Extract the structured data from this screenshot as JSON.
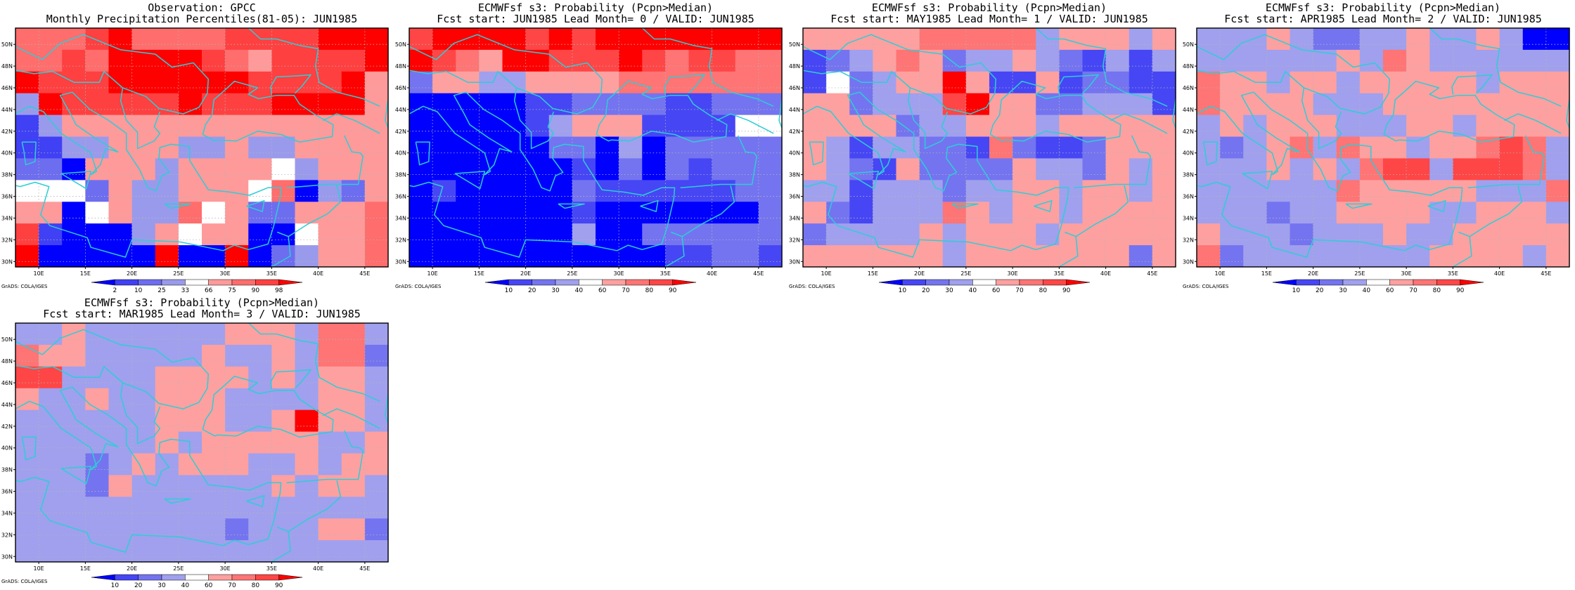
{
  "palette": {
    "percentile": [
      "#0000ff",
      "#4040f5",
      "#6d6df0",
      "#9a9aec",
      "#ffffff",
      "#ff9a9a",
      "#ff6d6d",
      "#ff4040",
      "#ff0000"
    ],
    "probability": [
      "#0000ff",
      "#4646f5",
      "#7474f0",
      "#a0a0ee",
      "#ffffff",
      "#ffa0a0",
      "#ff7474",
      "#ff4646",
      "#ff0000"
    ],
    "coast": "#2ecdd6",
    "grid": "#b5b5b5"
  },
  "credit": "GrADS: COLA/IGES",
  "chart_data": [
    {
      "type": "heatmap",
      "title": [
        "Observation: GPCC",
        "Monthly Precipitation Percentiles(81-05): JUN1985"
      ],
      "x_ticks": [
        "10E",
        "15E",
        "20E",
        "25E",
        "30E",
        "35E",
        "40E",
        "45E"
      ],
      "y_ticks": [
        "50N",
        "48N",
        "46N",
        "44N",
        "42N",
        "40N",
        "38N",
        "36N",
        "34N",
        "32N",
        "30N"
      ],
      "xlim": [
        7.5,
        47.5
      ],
      "ylim": [
        29.5,
        51.5
      ],
      "colorbar_labels": [
        "2",
        "10",
        "25",
        "33",
        "66",
        "75",
        "90",
        "98"
      ],
      "scale": "percentile",
      "grid_rows": [
        "6667866667777888",
        "6676888876577778",
        "8777888888777785",
        "3877777877788885",
        "1355555555555555",
        "1133555335335555",
        "2205553555543555",
        "4442533555460325",
        "5504533645225556",
        "7100035455004556",
        "8000008008023556"
      ]
    },
    {
      "type": "heatmap",
      "title": [
        "ECMWFsf s3: Probability (Pcpn>Median)",
        "Fcst start: JUN1985   Lead Month= 0 / VALID: JUN1985"
      ],
      "x_ticks": [
        "10E",
        "15E",
        "20E",
        "25E",
        "30E",
        "35E",
        "40E",
        "45E"
      ],
      "y_ticks": [
        "50N",
        "48N",
        "46N",
        "44N",
        "42N",
        "40N",
        "38N",
        "36N",
        "34N",
        "32N",
        "30N"
      ],
      "xlim": [
        7.5,
        47.5
      ],
      "ylim": [
        29.5,
        51.5
      ],
      "colorbar_labels": [
        "10",
        "20",
        "30",
        "40",
        "60",
        "70",
        "80",
        "90"
      ],
      "scale": "probability",
      "grid_rows": [
        "7888878788888888",
        "8765887778767766",
        "2553355556666666",
        "0000011222211222",
        "0000013555111144",
        "0000002203022222",
        "0000000102021222",
        "0100000211111122",
        "0000000100000002",
        "0000000300222222",
        "0000000000011221"
      ]
    },
    {
      "type": "heatmap",
      "title": [
        "ECMWFsf s3: Probability (Pcpn>Median)",
        "Fcst start: MAY1985   Lead Month= 1 / VALID: JUN1985"
      ],
      "x_ticks": [
        "10E",
        "15E",
        "20E",
        "25E",
        "30E",
        "35E",
        "40E",
        "45E"
      ],
      "y_ticks": [
        "50N",
        "48N",
        "46N",
        "44N",
        "42N",
        "40N",
        "38N",
        "36N",
        "34N",
        "32N",
        "30N"
      ],
      "xlim": [
        7.5,
        47.5
      ],
      "ylim": [
        29.5,
        51.5
      ],
      "colorbar_labels": [
        "10",
        "20",
        "30",
        "40",
        "60",
        "70",
        "80",
        "90"
      ],
      "scale": "probability",
      "grid_rows": [
        "5555566666355535",
        "1235652335321313",
        "1423558511512211",
        "5523337855223331",
        "5555233555355555",
        "5313322162112555",
        "5321522225332535",
        "3313332335535535",
        "5213336535535555",
        "2333353555355555",
        "5555553555555525"
      ]
    },
    {
      "type": "heatmap",
      "title": [
        "ECMWFsf s3: Probability (Pcpn>Median)",
        "Fcst start: APR1985   Lead Month= 2 / VALID: JUN1985"
      ],
      "x_ticks": [
        "10E",
        "15E",
        "20E",
        "25E",
        "30E",
        "35E",
        "40E",
        "45E"
      ],
      "y_ticks": [
        "50N",
        "48N",
        "46N",
        "44N",
        "42N",
        "40N",
        "38N",
        "36N",
        "34N",
        "32N",
        "30N"
      ],
      "xlim": [
        7.5,
        47.5
      ],
      "ylim": [
        29.5,
        51.5
      ],
      "colorbar_labels": [
        "10",
        "20",
        "30",
        "40",
        "60",
        "70",
        "80",
        "90"
      ],
      "scale": "probability",
      "grid_rows": [
        "3335322335335300",
        "3333335365333333",
        "6553553555553555",
        "6555533355555555",
        "3535553335535555",
        "3235636553556763",
        "3335353677377763",
        "3333336555553336",
        "3332335555335553",
        "5333233353355555",
        "6233333333555535"
      ]
    },
    {
      "type": "heatmap",
      "title": [
        "ECMWFsf s3: Probability (Pcpn>Median)",
        "Fcst start: MAR1985   Lead Month= 3 / VALID: JUN1985"
      ],
      "x_ticks": [
        "10E",
        "15E",
        "20E",
        "25E",
        "30E",
        "35E",
        "40E",
        "45E"
      ],
      "y_ticks": [
        "50N",
        "48N",
        "46N",
        "44N",
        "42N",
        "40N",
        "38N",
        "36N",
        "34N",
        "32N",
        "30N"
      ],
      "xlim": [
        7.5,
        47.5
      ],
      "ylim": [
        29.5,
        51.5
      ],
      "colorbar_labels": [
        "10",
        "20",
        "30",
        "40",
        "60",
        "70",
        "80",
        "90"
      ],
      "scale": "probability",
      "grid_rows": [
        "3353333335553663",
        "6553333353353662",
        "7733335555353553",
        "5335335553333553",
        "3333335553358553",
        "3333335355555335",
        "3332353555335355",
        "3332533333353553",
        "3333333333333333",
        "3333333332333552",
        "3333333333333333"
      ]
    }
  ]
}
